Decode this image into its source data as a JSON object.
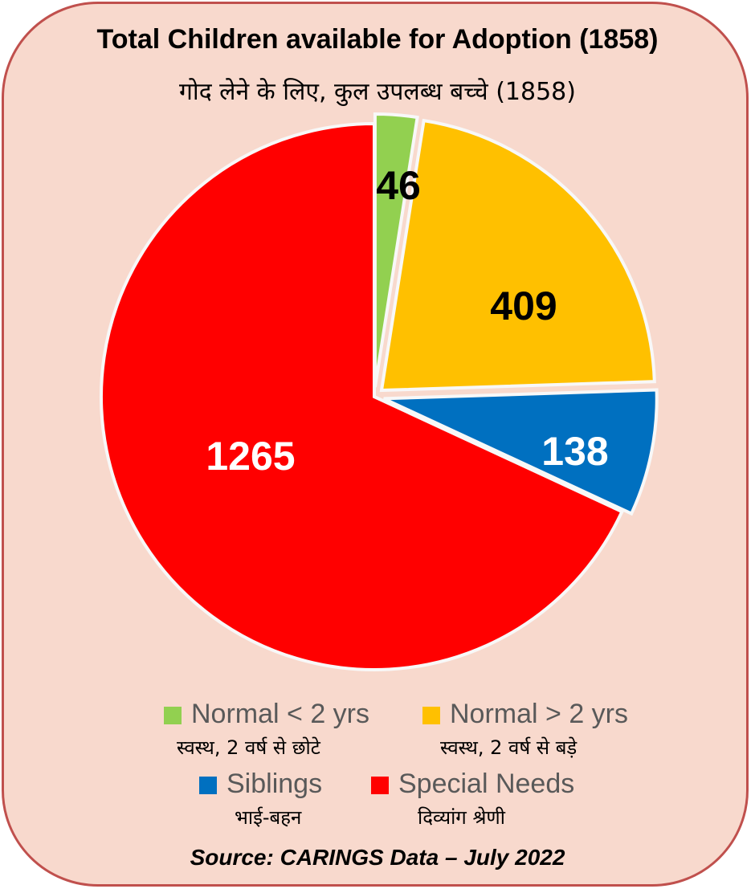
{
  "chart_data": {
    "type": "pie",
    "title": "Total Children available for Adoption (1858)",
    "subtitle": "गोद लेने के लिए, कुल उपलब्ध बच्चे (1858)",
    "categories": [
      "Normal < 2 yrs",
      "Normal > 2 yrs",
      "Siblings",
      "Special Needs"
    ],
    "categories_hindi": [
      "स्वस्थ, 2 वर्ष से छोटे",
      "स्वस्थ, 2 वर्ष से बड़े",
      "भाई-बहन",
      "दिव्यांग श्रेणी"
    ],
    "values": [
      46,
      409,
      138,
      1265
    ],
    "colors": [
      "#92d050",
      "#ffc000",
      "#0070c0",
      "#ff0000"
    ],
    "label_colors": [
      "#000000",
      "#000000",
      "#ffffff",
      "#ffffff"
    ],
    "legend_position": "bottom",
    "source": "Source: CARINGS Data – July 2022"
  }
}
